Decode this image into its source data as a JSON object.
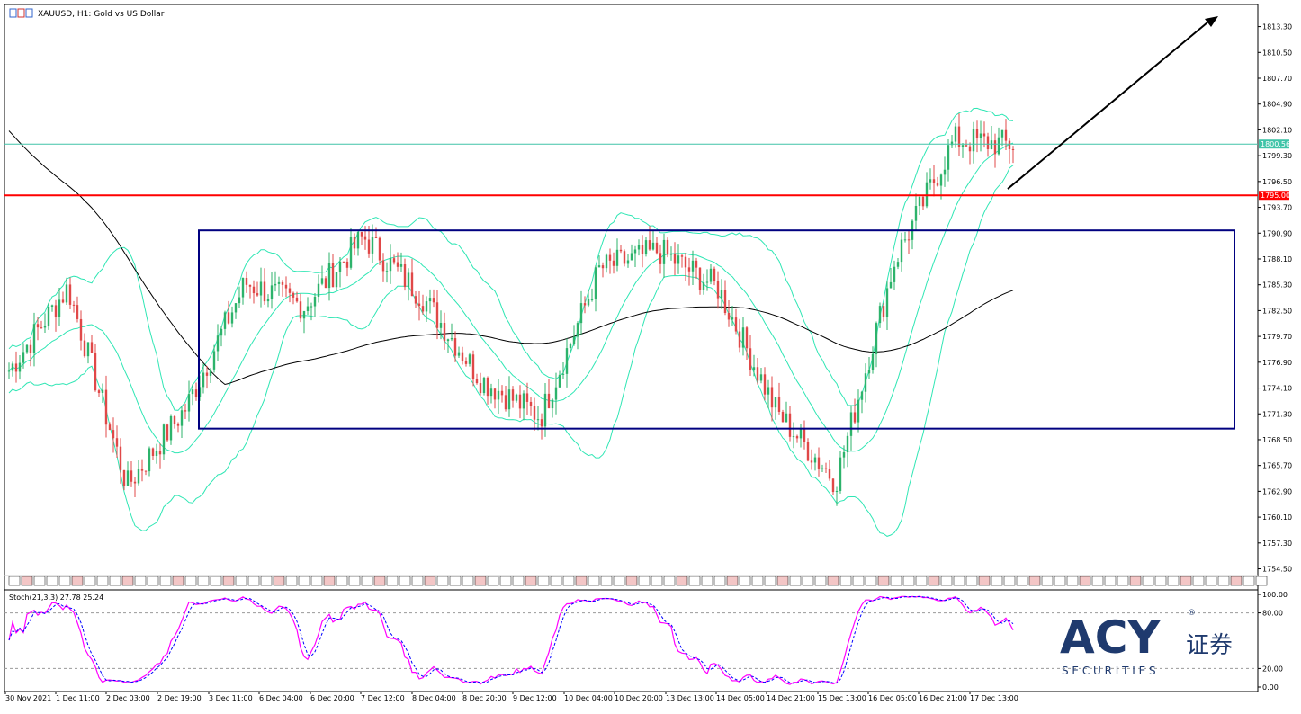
{
  "header": {
    "title": "XAUUSD, H1:  Gold vs US Dollar"
  },
  "oscillator": {
    "label": "Stoch(21,3,3) 27.78 25.24",
    "ticks": [
      "100.00",
      "80.00",
      "20.00",
      "0.00"
    ],
    "levels": [
      100,
      80,
      20,
      0
    ]
  },
  "price_tags": {
    "current": "1800.56",
    "support": "1795.00"
  },
  "brand": {
    "logo_text": "ACY",
    "chinese": "证券",
    "subtitle": "S E C U R I T I E S",
    "reg": "®"
  },
  "chart_data": {
    "type": "candlestick",
    "symbol": "XAUUSD",
    "timeframe": "H1",
    "ylim": [
      1752.6,
      1815.6
    ],
    "y_ticks": [
      1813.3,
      1810.5,
      1807.7,
      1804.9,
      1802.1,
      1799.3,
      1796.5,
      1793.7,
      1790.9,
      1788.1,
      1785.3,
      1782.5,
      1779.7,
      1776.9,
      1774.1,
      1771.3,
      1768.5,
      1765.7,
      1762.9,
      1760.1,
      1757.3,
      1754.5
    ],
    "y_tick_labels": [
      "1813.30",
      "1810.50",
      "1807.70",
      "1804.90",
      "1802.10",
      "1799.30",
      "1796.50",
      "1793.70",
      "1790.90",
      "1788.10",
      "1785.30",
      "1782.50",
      "1779.70",
      "1776.90",
      "1774.10",
      "1771.30",
      "1768.50",
      "1765.70",
      "1762.90",
      "1760.10",
      "1757.30",
      "1754.50"
    ],
    "x_tick_labels": [
      "30 Nov 2021",
      "1 Dec 11:00",
      "2 Dec 03:00",
      "2 Dec 19:00",
      "3 Dec 11:00",
      "6 Dec 04:00",
      "6 Dec 20:00",
      "7 Dec 12:00",
      "8 Dec 04:00",
      "8 Dec 20:00",
      "9 Dec 12:00",
      "10 Dec 04:00",
      "10 Dec 20:00",
      "13 Dec 13:00",
      "14 Dec 05:00",
      "14 Dec 21:00",
      "15 Dec 13:00",
      "16 Dec 05:00",
      "16 Dec 21:00",
      "17 Dec 13:00"
    ],
    "horizontal_lines": [
      {
        "label": "1800.56",
        "price": 1800.56,
        "color": "#40c4a8"
      },
      {
        "label": "1795.00",
        "price": 1795.0,
        "color": "#ff0000"
      }
    ],
    "range_box": {
      "top": 1791.2,
      "bottom": 1769.7,
      "color": "#000080"
    },
    "bull_color": "#2db36b",
    "bear_color": "#e04848",
    "band_color": "#2fe6b4",
    "ma_color": "#000000",
    "stoch_main_color": "#ff00ff",
    "stoch_signal_color": "#0000ff",
    "key_points": [
      {
        "x": "30 Nov 2021",
        "y": 1776.0
      },
      {
        "x": "1 Dec 11:00",
        "y": 1785.0
      },
      {
        "x": "2 Dec 19:00",
        "y": 1763.5
      },
      {
        "x": "3 Dec 11:00",
        "y": 1772.0
      },
      {
        "x": "6 Dec 04:00",
        "y": 1785.5
      },
      {
        "x": "7 Dec 12:00",
        "y": 1783.0
      },
      {
        "x": "8 Dec 04:00",
        "y": 1790.5
      },
      {
        "x": "8 Dec 20:00",
        "y": 1784.0
      },
      {
        "x": "9 Dec 12:00",
        "y": 1775.0
      },
      {
        "x": "10 Dec 04:00",
        "y": 1771.0
      },
      {
        "x": "10 Dec 20:00",
        "y": 1787.0
      },
      {
        "x": "13 Dec 13:00",
        "y": 1789.0
      },
      {
        "x": "14 Dec 05:00",
        "y": 1785.0
      },
      {
        "x": "14 Dec 21:00",
        "y": 1771.5
      },
      {
        "x": "15 Dec 13:00",
        "y": 1764.0
      },
      {
        "x": "16 Dec 05:00",
        "y": 1788.0
      },
      {
        "x": "16 Dec 21:00",
        "y": 1801.0
      },
      {
        "x": "17 Dec 13:00",
        "y": 1800.5
      }
    ]
  }
}
